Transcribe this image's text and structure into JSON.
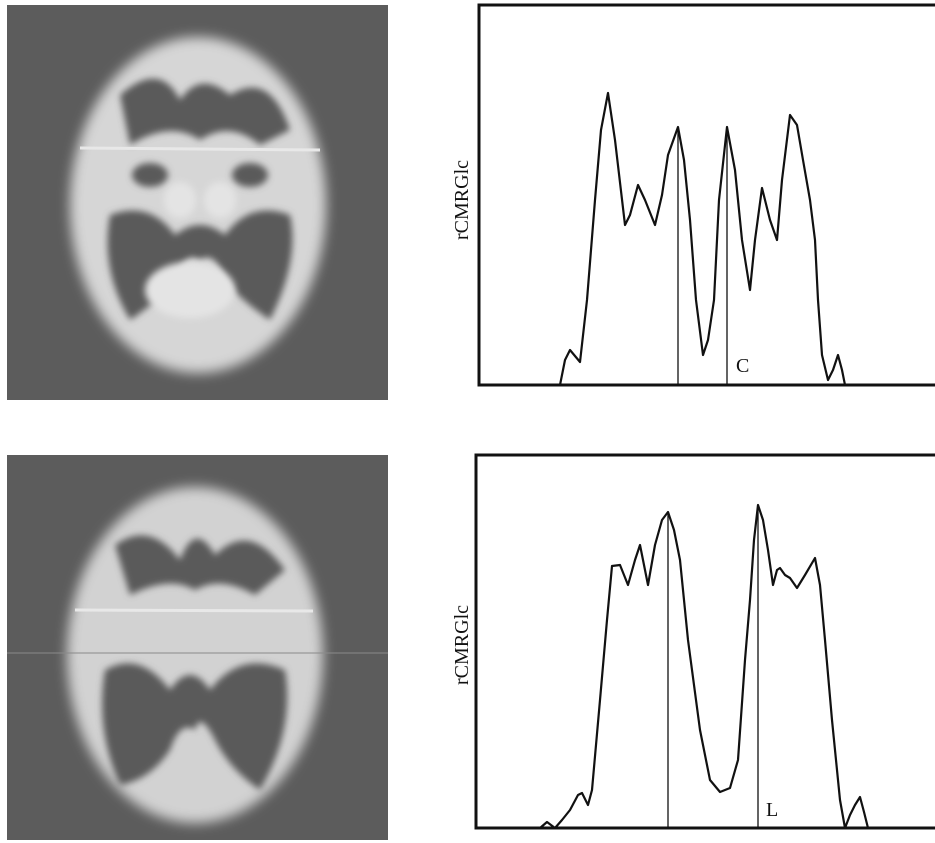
{
  "panels": [
    {
      "y_label": "rCMRGlc",
      "marker": "C"
    },
    {
      "y_label": "rCMRGlc",
      "marker": "L"
    }
  ]
}
